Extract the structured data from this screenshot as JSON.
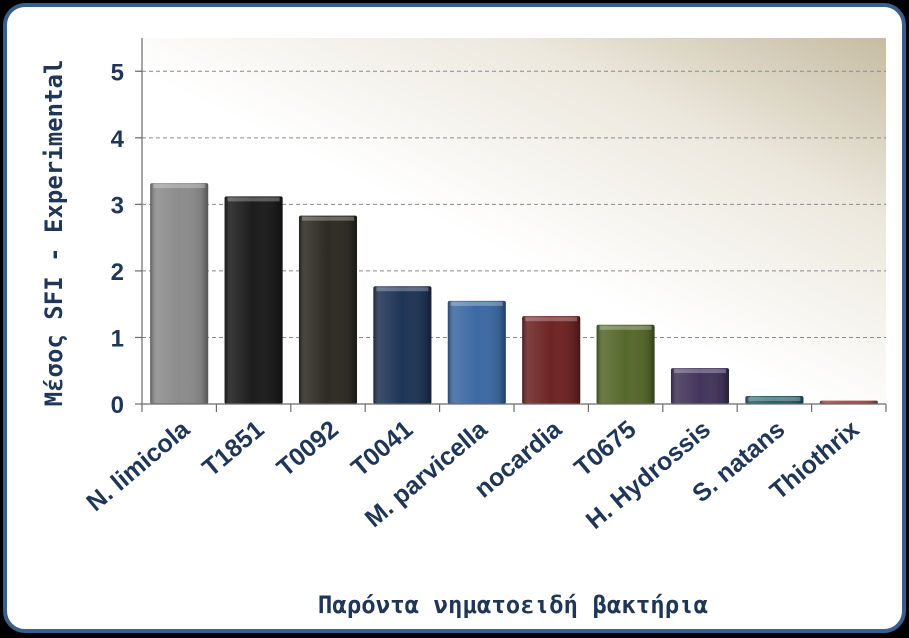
{
  "chart_data": {
    "type": "bar",
    "title": "",
    "xlabel": "Παρόντα νηματοειδή βακτήρια",
    "ylabel": "Μέσος SFI - Experimental",
    "ylim": [
      0,
      5.5
    ],
    "yticks": [
      0,
      1,
      2,
      3,
      4,
      5
    ],
    "grid": true,
    "categories": [
      "N. limicola",
      "T1851",
      "T0092",
      "T0041",
      "M. parvicella",
      "nocardia",
      "T0675",
      "H. Hydrossis",
      "S. natans",
      "Thiothrix"
    ],
    "values": [
      3.32,
      3.12,
      2.83,
      1.77,
      1.55,
      1.32,
      1.19,
      0.54,
      0.12,
      0.05
    ],
    "colors": [
      "#8c8c8c",
      "#1c1c1c",
      "#2d2b23",
      "#1f3556",
      "#3d6aa3",
      "#6e2424",
      "#56692c",
      "#43365c",
      "#2a5f66",
      "#a05050"
    ]
  }
}
